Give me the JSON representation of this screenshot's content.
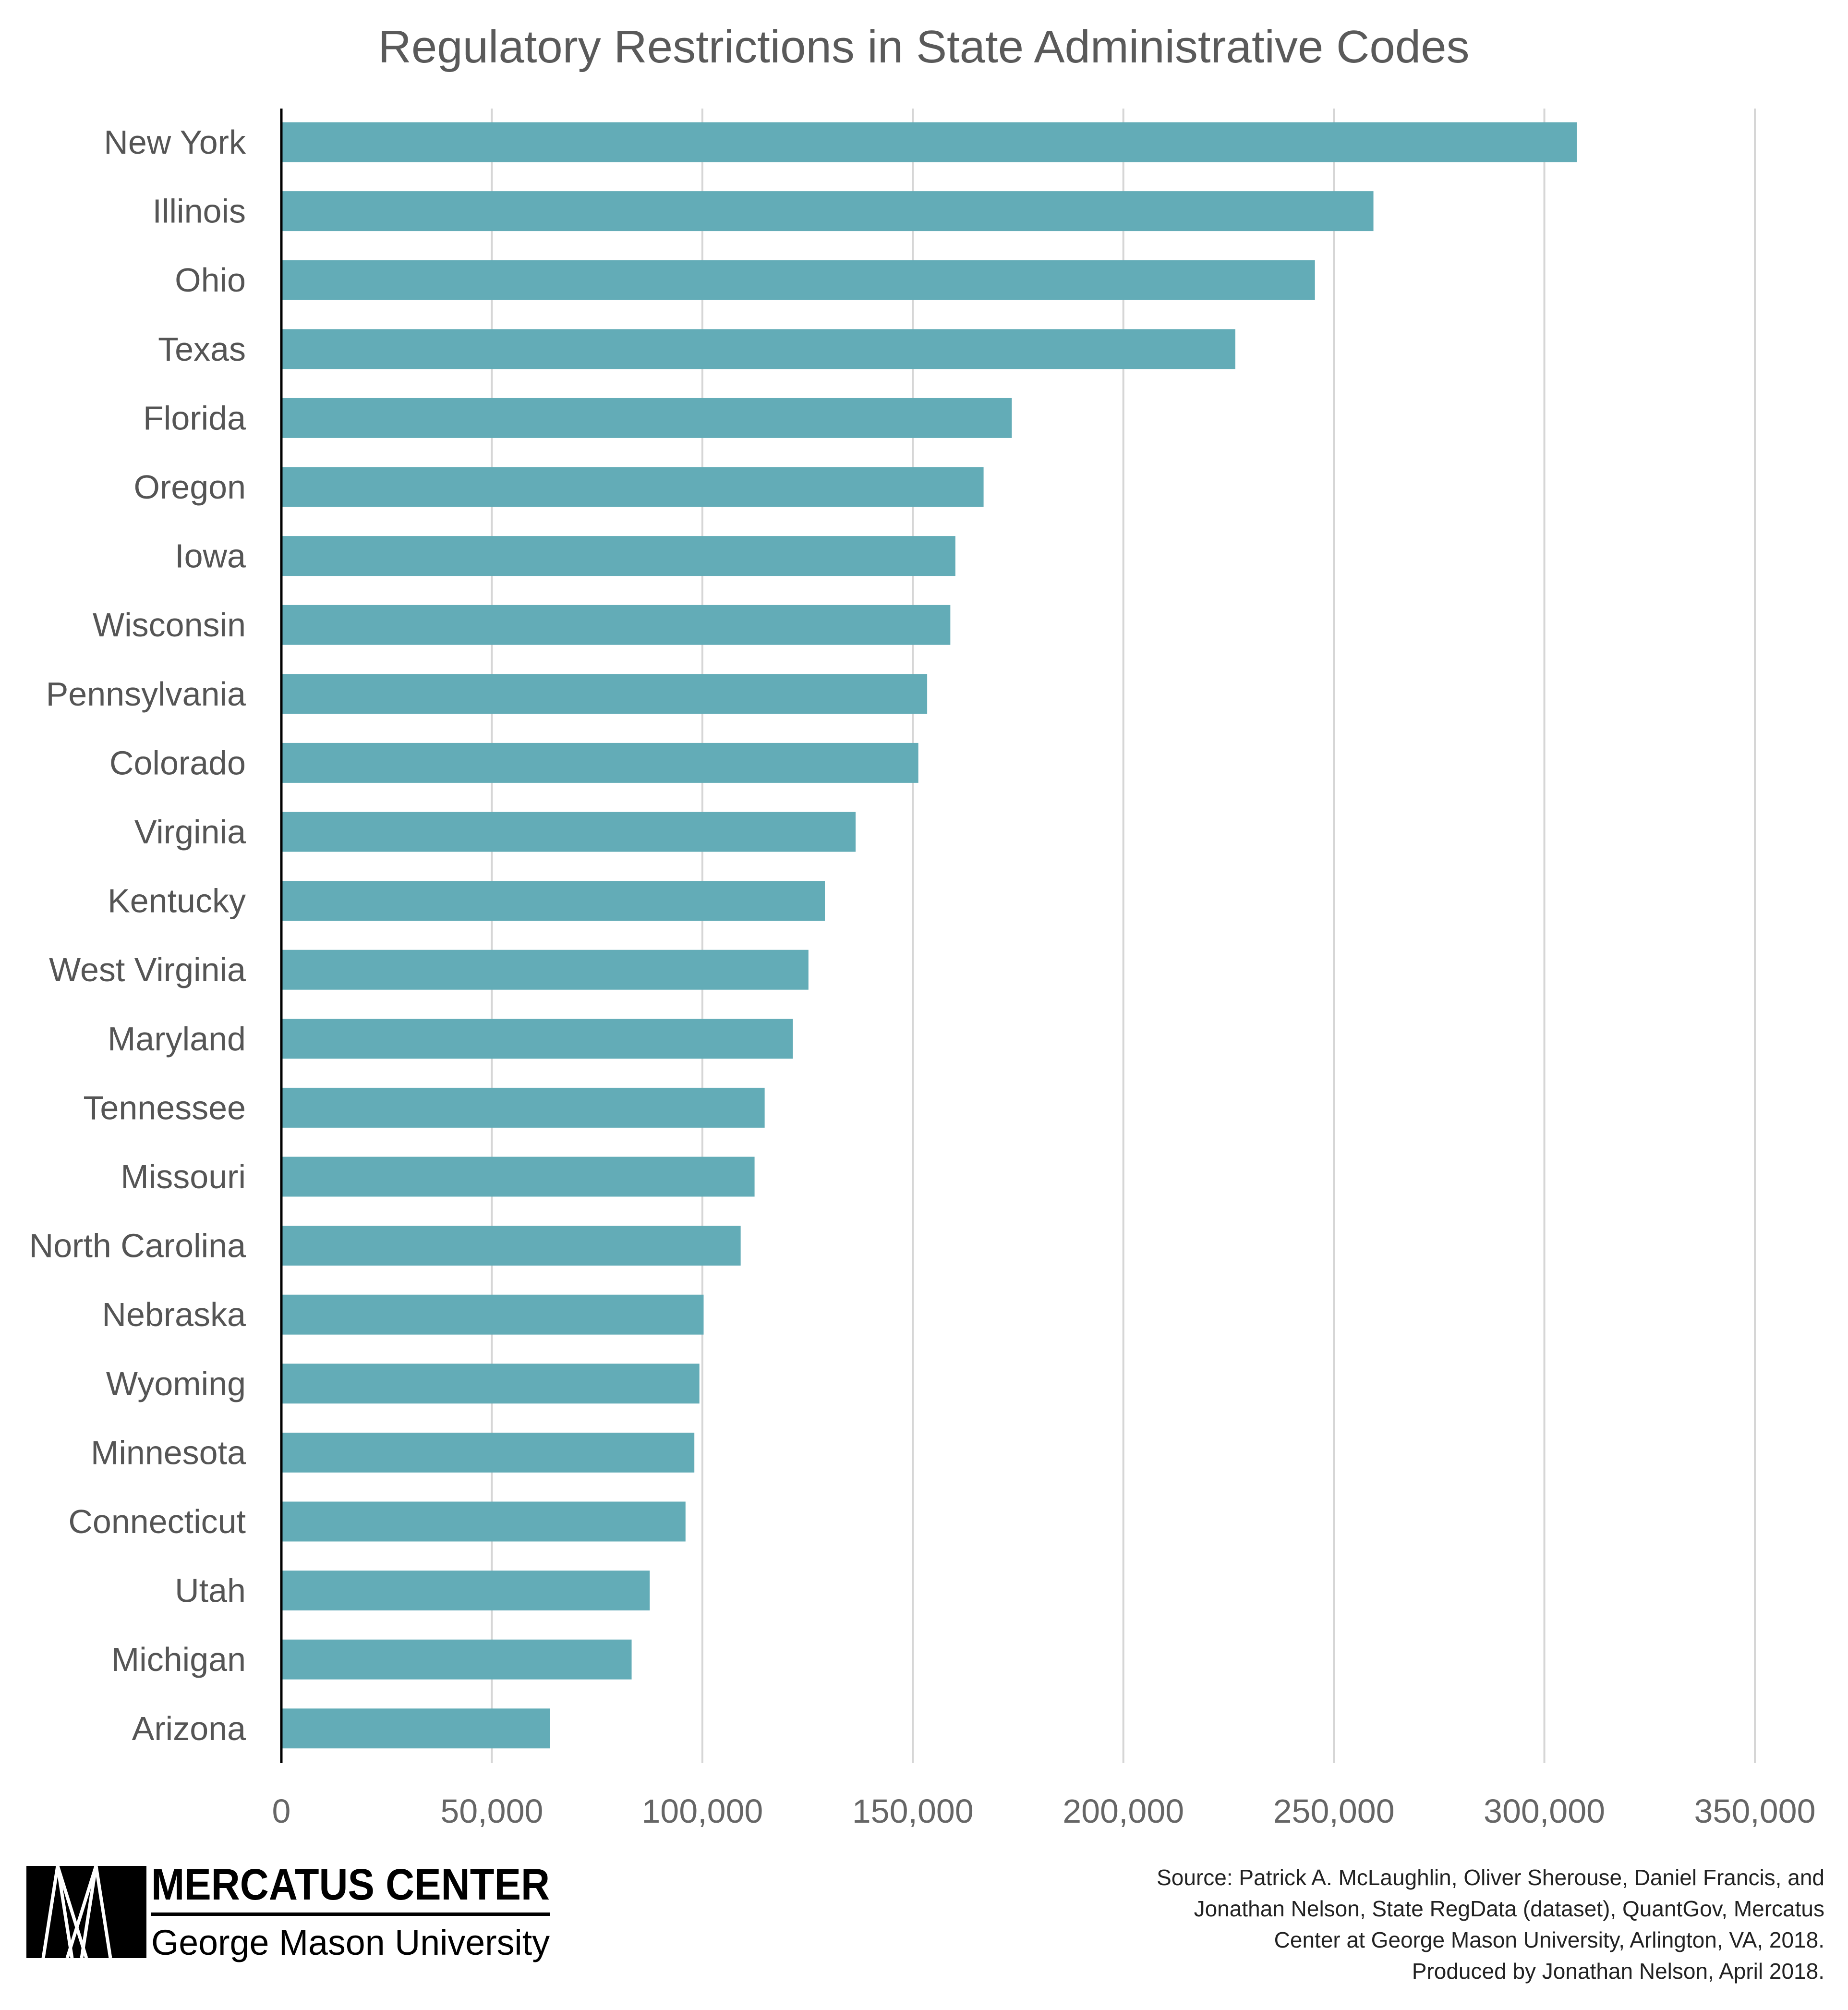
{
  "chart_data": {
    "type": "bar",
    "orientation": "horizontal",
    "title": "Regulatory Restrictions in State Administrative Codes",
    "xlabel": "",
    "ylabel": "",
    "xlim": [
      0,
      350000
    ],
    "xticks": [
      0,
      50000,
      100000,
      150000,
      200000,
      250000,
      300000,
      350000
    ],
    "xtick_labels": [
      "0",
      "50,000",
      "100,000",
      "150,000",
      "200,000",
      "250,000",
      "300,000",
      "350,000"
    ],
    "grid": "vertical",
    "bar_color": "#63acb7",
    "categories": [
      "New York",
      "Illinois",
      "Ohio",
      "Texas",
      "Florida",
      "Oregon",
      "Iowa",
      "Wisconsin",
      "Pennsylvania",
      "Colorado",
      "Virginia",
      "Kentucky",
      "West Virginia",
      "Maryland",
      "Tennessee",
      "Missouri",
      "North Carolina",
      "Nebraska",
      "Wyoming",
      "Minnesota",
      "Connecticut",
      "Utah",
      "Michigan",
      "Arizona"
    ],
    "values": [
      307700,
      259400,
      245500,
      226600,
      173500,
      166800,
      160100,
      158900,
      153400,
      151300,
      136400,
      129100,
      125200,
      121500,
      114800,
      112400,
      109100,
      100300,
      99300,
      98100,
      96000,
      87500,
      83200,
      63800
    ]
  },
  "footer": {
    "logo_line1": "MERCATUS CENTER",
    "logo_line2": "George Mason University",
    "source_lines": [
      "Source: Patrick A. McLaughlin, Oliver Sherouse, Daniel Francis, and",
      "Jonathan Nelson, State RegData (dataset), QuantGov, Mercatus",
      "Center at George Mason University, Arlington, VA, 2018.",
      "Produced by Jonathan Nelson, April 2018."
    ]
  }
}
